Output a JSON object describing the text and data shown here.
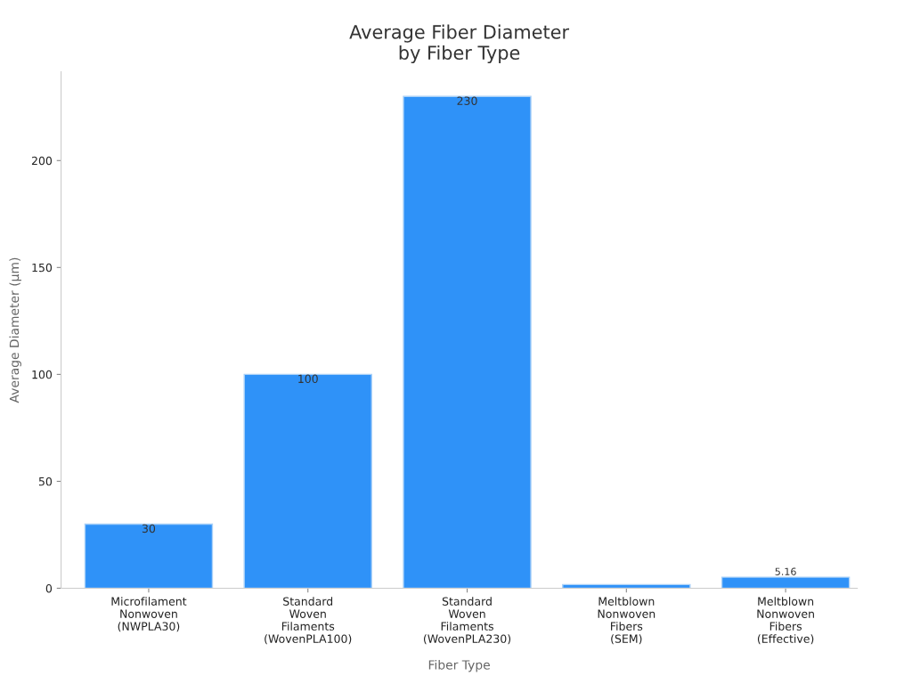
{
  "chart_data": {
    "type": "bar",
    "title": "Average Fiber Diameter\nby Fiber Type",
    "xlabel": "Fiber Type",
    "ylabel": "Average Diameter (µm)",
    "categories": [
      "Microfilament\nNonwoven\n(NWPLA30)",
      "Standard\nWoven\nFilaments\n(WovenPLA100)",
      "Standard\nWoven\nFilaments\n(WovenPLA230)",
      "Meltblown\nNonwoven\nFibers\n(SEM)",
      "Meltblown\nNonwoven\nFibers\n(Effective)"
    ],
    "values": [
      30,
      100,
      230,
      1.7,
      5.16
    ],
    "value_labels": [
      "30",
      "100",
      "230",
      null,
      "5.16"
    ],
    "color": "#2f92f8",
    "ylim": [
      0,
      241.5
    ],
    "yticks": [
      0,
      50,
      100,
      150,
      200
    ],
    "grid": false
  }
}
